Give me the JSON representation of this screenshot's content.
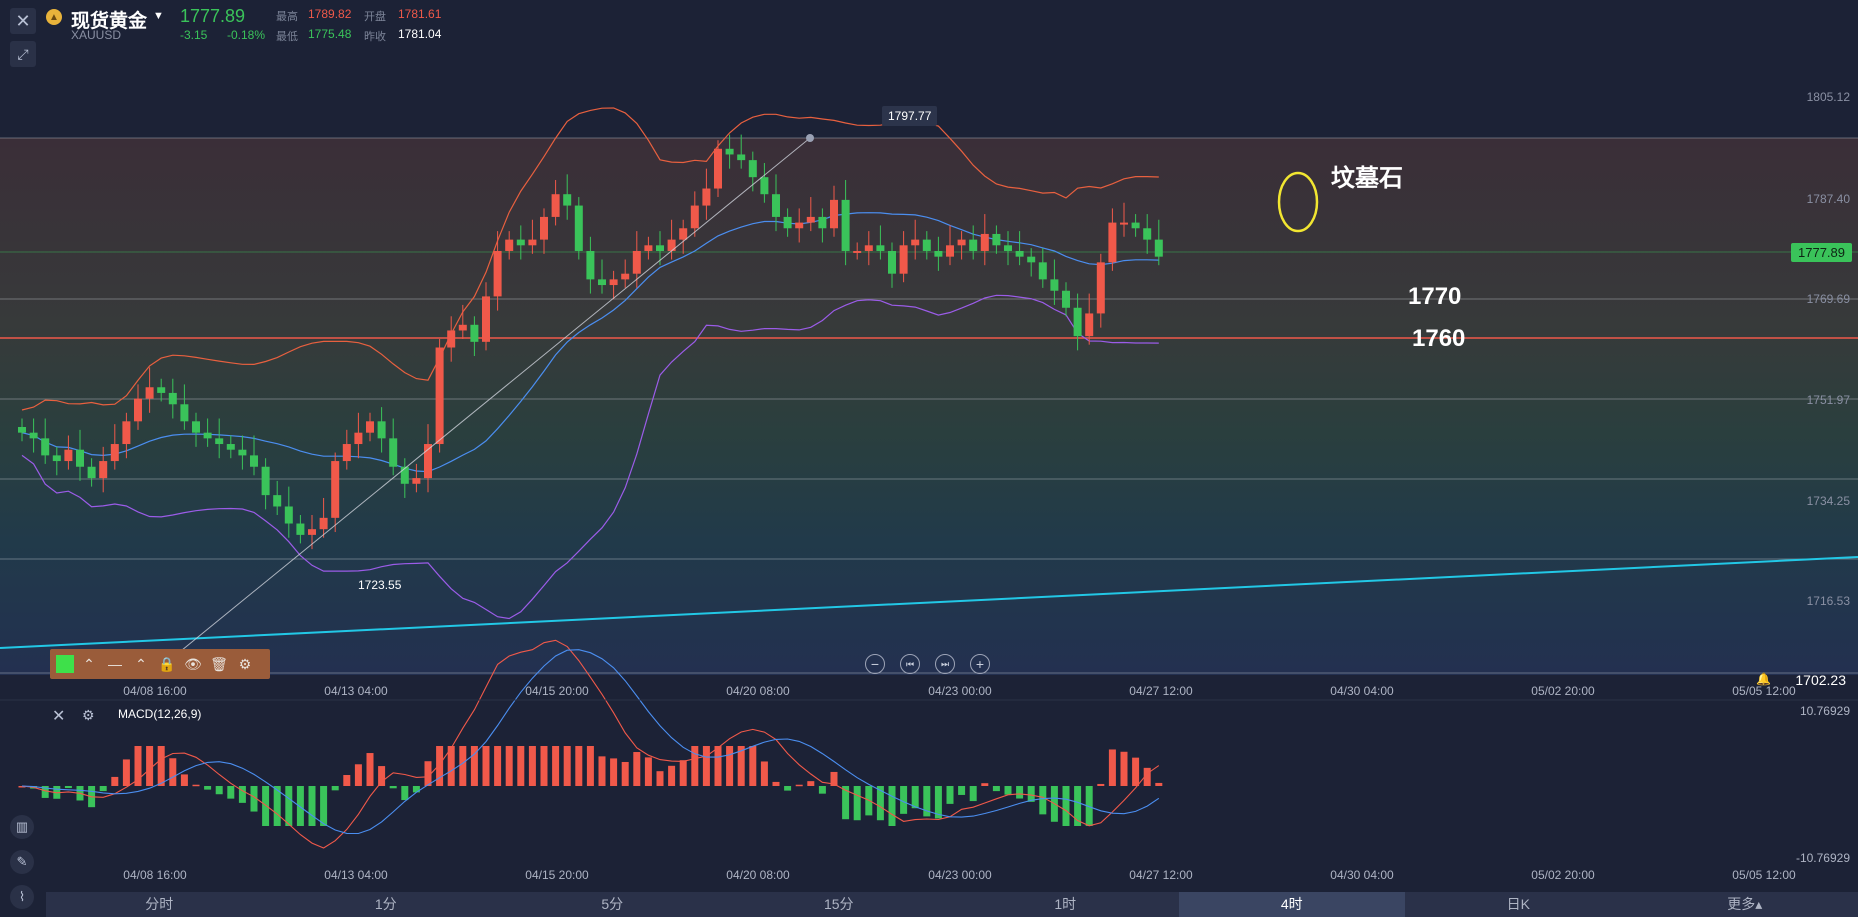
{
  "header": {
    "symbol_name": "现货黄金",
    "symbol_code": "XAUUSD",
    "last_price": "1777.89",
    "change": "-3.15",
    "change_pct": "-0.18%",
    "high_label": "最高",
    "high_value": "1789.82",
    "open_label": "开盘",
    "open_value": "1781.61",
    "low_label": "最低",
    "low_value": "1775.48",
    "prev_close_label": "昨收",
    "prev_close_value": "1781.04"
  },
  "colors": {
    "up": "#f0594a",
    "down": "#3ac35a",
    "trendline": "#22c8e6",
    "ma_mid": "#4b8ef0",
    "band_upper": "#e8603f",
    "band_lower": "#9b5ce8"
  },
  "price_axis": {
    "ticks": [
      "1805.12",
      "1787.40",
      "1769.69",
      "1751.97",
      "1734.25",
      "1716.53"
    ],
    "current_price_tag": "1777.89",
    "bottom_price": "1702.23"
  },
  "time_axis": {
    "ticks": [
      "04/08 16:00",
      "04/13 04:00",
      "04/15 20:00",
      "04/20 08:00",
      "04/23 00:00",
      "04/27 12:00",
      "04/30 04:00",
      "05/02 20:00",
      "05/05 12:00"
    ]
  },
  "annotations": {
    "high_label": "1797.77",
    "low_label": "1723.55",
    "tombstone": "坟墓石",
    "level_1770": "1770",
    "level_1760": "1760"
  },
  "macd": {
    "title": "MACD(12,26,9)",
    "top_value": "10.76929",
    "bottom_value": "-10.76929"
  },
  "timeframes": [
    {
      "label": "分时",
      "active": false
    },
    {
      "label": "1分",
      "active": false
    },
    {
      "label": "5分",
      "active": false
    },
    {
      "label": "15分",
      "active": false
    },
    {
      "label": "1时",
      "active": false
    },
    {
      "label": "4时",
      "active": true
    },
    {
      "label": "日K",
      "active": false
    },
    {
      "label": "更多▴",
      "active": false
    }
  ],
  "icons": {
    "close": "close-icon",
    "draw": "drawing-tools-icon",
    "dropdown": "chevron-down-icon",
    "gold": "gold-coin-icon",
    "zoom_out": "zoom-out-icon",
    "step_back": "step-back-icon",
    "step_forward": "step-forward-icon",
    "zoom_in": "zoom-in-icon",
    "lock": "lock-icon",
    "eye": "eye-icon",
    "trash": "trash-icon",
    "settings": "gear-icon",
    "alarm": "alarm-icon"
  }
}
